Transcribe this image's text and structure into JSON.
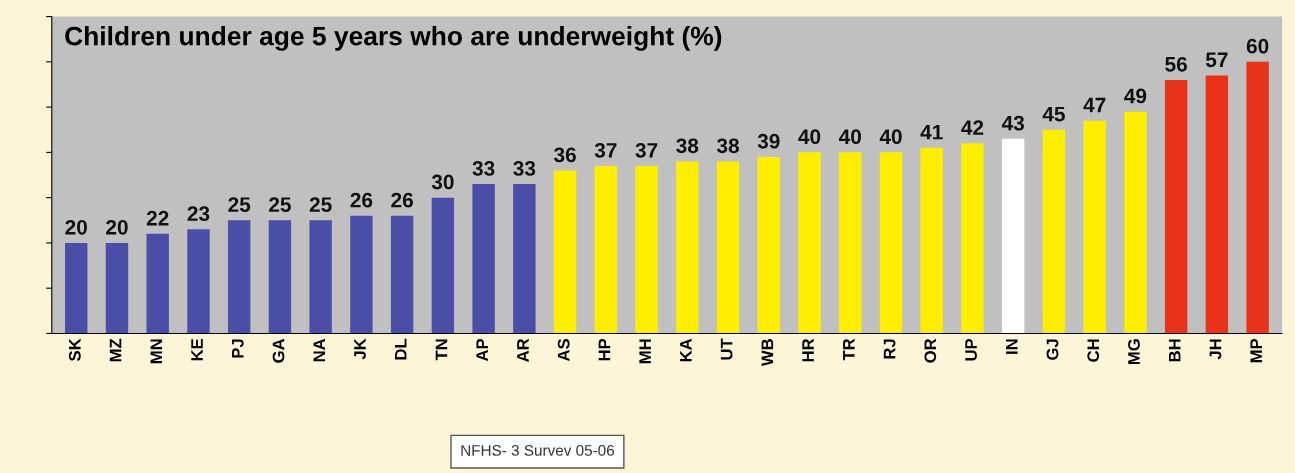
{
  "chart_data": {
    "type": "bar",
    "title": "Children under age 5 years who are underweight (%)",
    "categories": [
      "SK",
      "MZ",
      "MN",
      "KE",
      "PJ",
      "GA",
      "NA",
      "JK",
      "DL",
      "TN",
      "AP",
      "AR",
      "AS",
      "HP",
      "MH",
      "KA",
      "UT",
      "WB",
      "HR",
      "TR",
      "RJ",
      "OR",
      "UP",
      "IN",
      "GJ",
      "CH",
      "MG",
      "BH",
      "JH",
      "MP"
    ],
    "values": [
      20,
      20,
      22,
      23,
      25,
      25,
      25,
      26,
      26,
      30,
      33,
      33,
      36,
      37,
      37,
      38,
      38,
      39,
      40,
      40,
      40,
      41,
      42,
      43,
      45,
      47,
      49,
      56,
      57,
      60
    ],
    "colors": [
      "#4a4ea6",
      "#4a4ea6",
      "#4a4ea6",
      "#4a4ea6",
      "#4a4ea6",
      "#4a4ea6",
      "#4a4ea6",
      "#4a4ea6",
      "#4a4ea6",
      "#4a4ea6",
      "#4a4ea6",
      "#4a4ea6",
      "#ffee00",
      "#ffee00",
      "#ffee00",
      "#ffee00",
      "#ffee00",
      "#ffee00",
      "#ffee00",
      "#ffee00",
      "#ffee00",
      "#ffee00",
      "#ffee00",
      "#ffffff",
      "#ffee00",
      "#ffee00",
      "#ffee00",
      "#e8331a",
      "#e8331a",
      "#e8331a"
    ],
    "ylim": [
      0,
      70
    ],
    "yticks": [
      {
        "value": 0,
        "label": null
      },
      {
        "value": 10,
        "label": null
      },
      {
        "value": 20,
        "label": null
      },
      {
        "value": 30,
        "label": null
      },
      {
        "value": 40,
        "label": null
      },
      {
        "value": 50,
        "label": null
      },
      {
        "value": 60,
        "label": null
      },
      {
        "value": 70,
        "label": null
      }
    ],
    "tick_labels": "x",
    "data_labels": true,
    "grid": false,
    "legend": false,
    "annotations": [
      "NFHS- 3 Survev 05-06"
    ]
  }
}
